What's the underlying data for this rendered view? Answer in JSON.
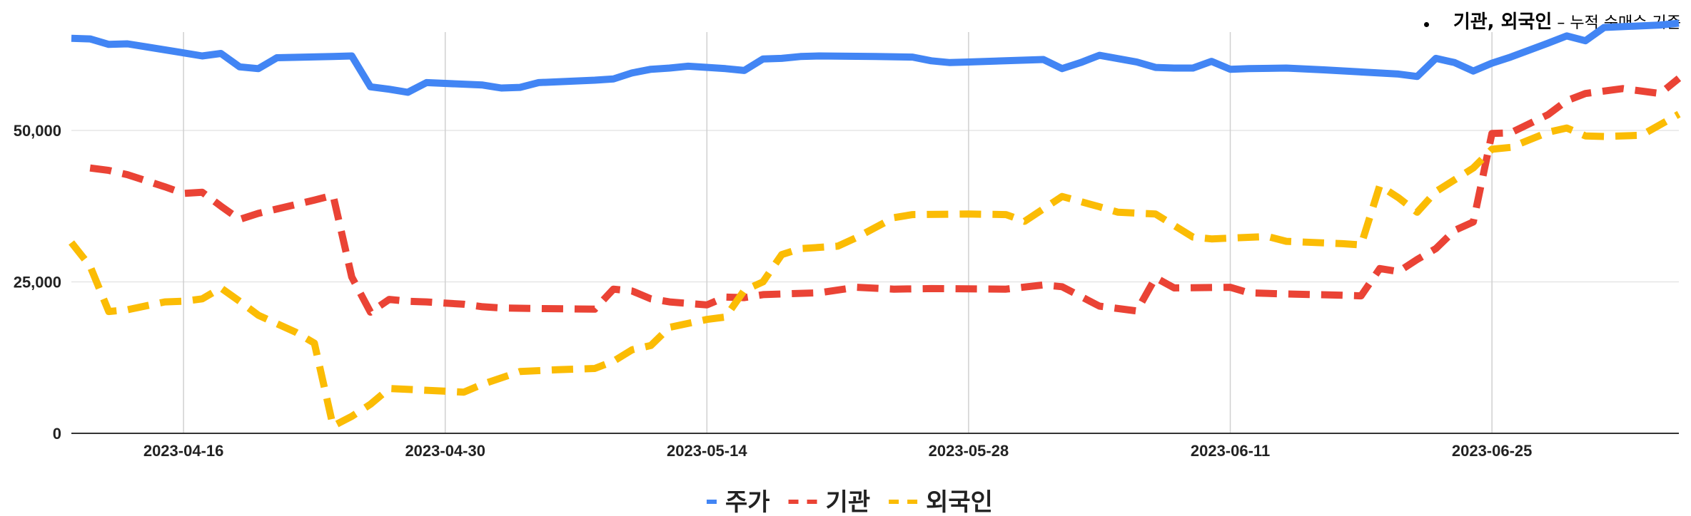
{
  "annotation": {
    "main": "기관, 외국인",
    "sub": " – 누적 순매수 기준"
  },
  "chart_data": {
    "type": "line",
    "title": "",
    "xlabel": "",
    "ylabel": "",
    "x_start": "2023-04-10",
    "x_end": "2023-07-05",
    "x_ticks": [
      "2023-04-16",
      "2023-04-30",
      "2023-05-14",
      "2023-05-28",
      "2023-06-11",
      "2023-06-25"
    ],
    "ylim": [
      0,
      68000
    ],
    "y_ticks": [
      0,
      25000,
      50000
    ],
    "y_tick_labels": [
      "0",
      "25,000",
      "50,000"
    ],
    "grid": true,
    "legend_position": "bottom",
    "series": [
      {
        "name": "주가",
        "color": "#4285F4",
        "dash": "solid",
        "points": [
          [
            "2023-04-10",
            65200
          ],
          [
            "2023-04-11",
            65100
          ],
          [
            "2023-04-12",
            64200
          ],
          [
            "2023-04-13",
            64300
          ],
          [
            "2023-04-14",
            63800
          ],
          [
            "2023-04-16",
            62800
          ],
          [
            "2023-04-17",
            62300
          ],
          [
            "2023-04-18",
            62700
          ],
          [
            "2023-04-19",
            60500
          ],
          [
            "2023-04-20",
            60200
          ],
          [
            "2023-04-21",
            62000
          ],
          [
            "2023-04-24",
            62200
          ],
          [
            "2023-04-25",
            62300
          ],
          [
            "2023-04-26",
            57200
          ],
          [
            "2023-04-27",
            56800
          ],
          [
            "2023-04-28",
            56300
          ],
          [
            "2023-04-29",
            57900
          ],
          [
            "2023-05-02",
            57500
          ],
          [
            "2023-05-03",
            57000
          ],
          [
            "2023-05-04",
            57100
          ],
          [
            "2023-05-05",
            57900
          ],
          [
            "2023-05-08",
            58300
          ],
          [
            "2023-05-09",
            58500
          ],
          [
            "2023-05-10",
            59500
          ],
          [
            "2023-05-11",
            60100
          ],
          [
            "2023-05-12",
            60300
          ],
          [
            "2023-05-13",
            60600
          ],
          [
            "2023-05-15",
            60200
          ],
          [
            "2023-05-16",
            59900
          ],
          [
            "2023-05-17",
            61800
          ],
          [
            "2023-05-18",
            61900
          ],
          [
            "2023-05-19",
            62200
          ],
          [
            "2023-05-20",
            62300
          ],
          [
            "2023-05-23",
            62200
          ],
          [
            "2023-05-25",
            62100
          ],
          [
            "2023-05-26",
            61500
          ],
          [
            "2023-05-27",
            61200
          ],
          [
            "2023-05-28",
            61300
          ],
          [
            "2023-06-01",
            61700
          ],
          [
            "2023-06-02",
            60200
          ],
          [
            "2023-06-03",
            61200
          ],
          [
            "2023-06-04",
            62400
          ],
          [
            "2023-06-06",
            61300
          ],
          [
            "2023-06-07",
            60400
          ],
          [
            "2023-06-08",
            60300
          ],
          [
            "2023-06-09",
            60300
          ],
          [
            "2023-06-10",
            61400
          ],
          [
            "2023-06-11",
            60100
          ],
          [
            "2023-06-12",
            60200
          ],
          [
            "2023-06-14",
            60300
          ],
          [
            "2023-06-16",
            60000
          ],
          [
            "2023-06-20",
            59300
          ],
          [
            "2023-06-21",
            58900
          ],
          [
            "2023-06-22",
            61900
          ],
          [
            "2023-06-23",
            61200
          ],
          [
            "2023-06-24",
            59800
          ],
          [
            "2023-06-25",
            61100
          ],
          [
            "2023-06-26",
            62100
          ],
          [
            "2023-06-28",
            64400
          ],
          [
            "2023-06-29",
            65600
          ],
          [
            "2023-06-30",
            64800
          ],
          [
            "2023-07-01",
            67000
          ],
          [
            "2023-07-04",
            67400
          ],
          [
            "2023-07-05",
            67700
          ]
        ]
      },
      {
        "name": "기관",
        "color": "#EA4335",
        "dash": "dashed",
        "points": [
          [
            "2023-04-11",
            43800
          ],
          [
            "2023-04-12",
            43400
          ],
          [
            "2023-04-13",
            42700
          ],
          [
            "2023-04-15",
            40700
          ],
          [
            "2023-04-16",
            39600
          ],
          [
            "2023-04-17",
            39800
          ],
          [
            "2023-04-18",
            37500
          ],
          [
            "2023-04-19",
            35300
          ],
          [
            "2023-04-20",
            36300
          ],
          [
            "2023-04-23",
            38500
          ],
          [
            "2023-04-24",
            39300
          ],
          [
            "2023-04-25",
            25800
          ],
          [
            "2023-04-26",
            20000
          ],
          [
            "2023-04-27",
            22100
          ],
          [
            "2023-04-28",
            21800
          ],
          [
            "2023-04-29",
            21700
          ],
          [
            "2023-05-01",
            21300
          ],
          [
            "2023-05-02",
            20900
          ],
          [
            "2023-05-03",
            20700
          ],
          [
            "2023-05-05",
            20600
          ],
          [
            "2023-05-08",
            20500
          ],
          [
            "2023-05-09",
            23800
          ],
          [
            "2023-05-10",
            23500
          ],
          [
            "2023-05-11",
            22200
          ],
          [
            "2023-05-12",
            21700
          ],
          [
            "2023-05-14",
            21200
          ],
          [
            "2023-05-15",
            22500
          ],
          [
            "2023-05-16",
            22400
          ],
          [
            "2023-05-17",
            22900
          ],
          [
            "2023-05-18",
            23000
          ],
          [
            "2023-05-20",
            23200
          ],
          [
            "2023-05-22",
            24100
          ],
          [
            "2023-05-24",
            23800
          ],
          [
            "2023-05-26",
            23900
          ],
          [
            "2023-05-30",
            23800
          ],
          [
            "2023-06-01",
            24500
          ],
          [
            "2023-06-02",
            24200
          ],
          [
            "2023-06-04",
            21000
          ],
          [
            "2023-06-06",
            20200
          ],
          [
            "2023-06-07",
            25700
          ],
          [
            "2023-06-08",
            24000
          ],
          [
            "2023-06-11",
            24100
          ],
          [
            "2023-06-12",
            23200
          ],
          [
            "2023-06-14",
            23000
          ],
          [
            "2023-06-17",
            22800
          ],
          [
            "2023-06-18",
            22700
          ],
          [
            "2023-06-19",
            27200
          ],
          [
            "2023-06-20",
            26700
          ],
          [
            "2023-06-21",
            28700
          ],
          [
            "2023-06-22",
            30500
          ],
          [
            "2023-06-23",
            33500
          ],
          [
            "2023-06-24",
            34900
          ],
          [
            "2023-06-25",
            49500
          ],
          [
            "2023-06-26",
            49600
          ],
          [
            "2023-06-28",
            52600
          ],
          [
            "2023-06-29",
            54900
          ],
          [
            "2023-06-30",
            56100
          ],
          [
            "2023-07-02",
            56900
          ],
          [
            "2023-07-04",
            56100
          ],
          [
            "2023-07-05",
            58600
          ]
        ]
      },
      {
        "name": "외국인",
        "color": "#FBBC04",
        "dash": "dashed",
        "points": [
          [
            "2023-04-10",
            31500
          ],
          [
            "2023-04-11",
            27600
          ],
          [
            "2023-04-12",
            20100
          ],
          [
            "2023-04-13",
            20400
          ],
          [
            "2023-04-15",
            21700
          ],
          [
            "2023-04-16",
            21800
          ],
          [
            "2023-04-17",
            22200
          ],
          [
            "2023-04-18",
            24000
          ],
          [
            "2023-04-19",
            21800
          ],
          [
            "2023-04-20",
            19500
          ],
          [
            "2023-04-22",
            16700
          ],
          [
            "2023-04-23",
            14900
          ],
          [
            "2023-04-24",
            1200
          ],
          [
            "2023-04-25",
            2800
          ],
          [
            "2023-04-26",
            4800
          ],
          [
            "2023-04-27",
            7400
          ],
          [
            "2023-04-29",
            7100
          ],
          [
            "2023-05-01",
            6800
          ],
          [
            "2023-05-02",
            8100
          ],
          [
            "2023-05-04",
            10200
          ],
          [
            "2023-05-06",
            10500
          ],
          [
            "2023-05-08",
            10700
          ],
          [
            "2023-05-09",
            11900
          ],
          [
            "2023-05-10",
            13800
          ],
          [
            "2023-05-11",
            14500
          ],
          [
            "2023-05-12",
            17500
          ],
          [
            "2023-05-14",
            18800
          ],
          [
            "2023-05-15",
            19200
          ],
          [
            "2023-05-16",
            23600
          ],
          [
            "2023-05-17",
            25000
          ],
          [
            "2023-05-18",
            29500
          ],
          [
            "2023-05-19",
            30500
          ],
          [
            "2023-05-21",
            30900
          ],
          [
            "2023-05-22",
            32300
          ],
          [
            "2023-05-24",
            35600
          ],
          [
            "2023-05-25",
            36100
          ],
          [
            "2023-05-28",
            36200
          ],
          [
            "2023-05-30",
            36100
          ],
          [
            "2023-05-31",
            35000
          ],
          [
            "2023-06-02",
            39100
          ],
          [
            "2023-06-04",
            37400
          ],
          [
            "2023-06-05",
            36500
          ],
          [
            "2023-06-07",
            36200
          ],
          [
            "2023-06-09",
            32400
          ],
          [
            "2023-06-10",
            32100
          ],
          [
            "2023-06-13",
            32500
          ],
          [
            "2023-06-14",
            31700
          ],
          [
            "2023-06-17",
            31300
          ],
          [
            "2023-06-18",
            31100
          ],
          [
            "2023-06-19",
            40900
          ],
          [
            "2023-06-20",
            38900
          ],
          [
            "2023-06-21",
            36500
          ],
          [
            "2023-06-22",
            39900
          ],
          [
            "2023-06-24",
            43800
          ],
          [
            "2023-06-25",
            46900
          ],
          [
            "2023-06-26",
            47200
          ],
          [
            "2023-06-28",
            49700
          ],
          [
            "2023-06-29",
            50400
          ],
          [
            "2023-06-30",
            49100
          ],
          [
            "2023-07-01",
            49000
          ],
          [
            "2023-07-03",
            49200
          ],
          [
            "2023-07-05",
            52700
          ]
        ]
      }
    ]
  }
}
